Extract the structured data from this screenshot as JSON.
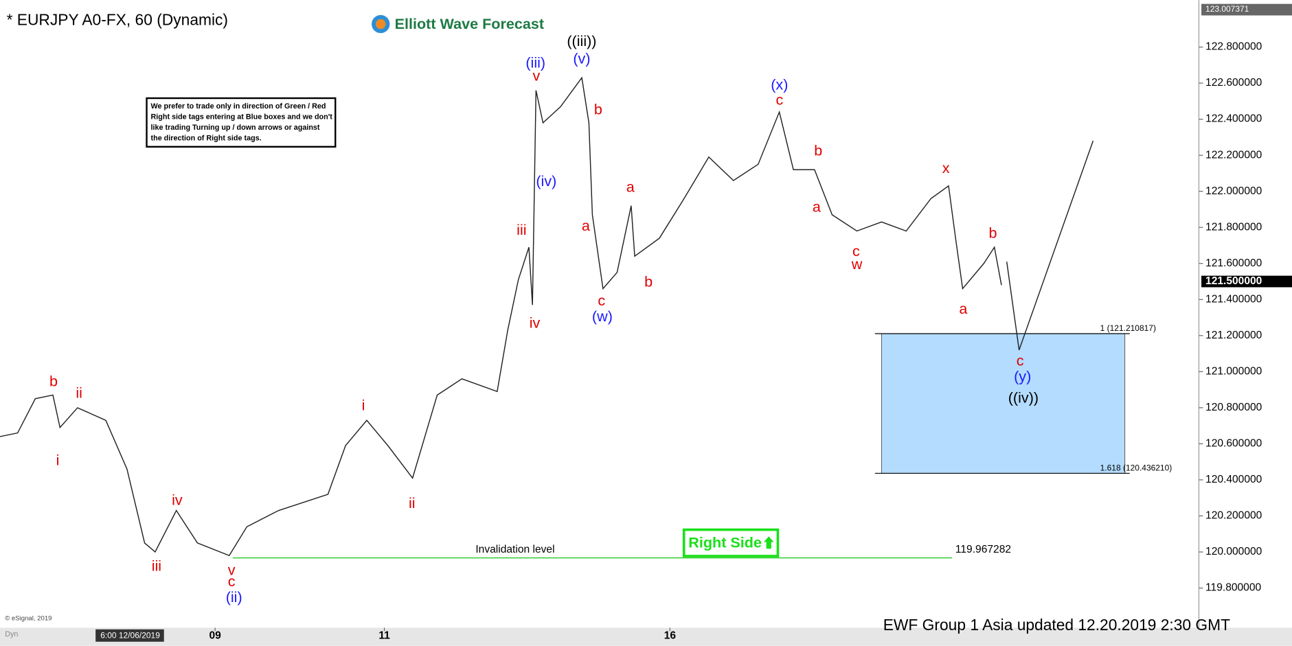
{
  "chart_data": {
    "type": "line",
    "title": "* EURJPY A0-FX, 60 (Dynamic)",
    "logo": "Elliott Wave Forecast",
    "disclaimer": [
      "We prefer to trade only in direction of Green / Red",
      "Right side tags entering at Blue boxes and we don't",
      "like trading Turning up / down arrows or against",
      "the direction of Right side tags."
    ],
    "right_side": "Right Side",
    "footer": "EWF Group  1 Asia  updated 12.20.2019 2:30 GMT",
    "copyright": "© eSignal, 2019",
    "start_date": "6:00 12/06/2019",
    "dyn": "Dyn",
    "xlim": [
      0,
      340
    ],
    "xticks": [
      {
        "value": 61,
        "label": "09"
      },
      {
        "value": 109,
        "label": "11"
      },
      {
        "value": 190,
        "label": "16"
      }
    ],
    "ylim": [
      119.58,
      123.06
    ],
    "yticks": [
      {
        "value": 119.8,
        "label": "119.800000"
      },
      {
        "value": 120.0,
        "label": "120.000000"
      },
      {
        "value": 120.2,
        "label": "120.200000"
      },
      {
        "value": 120.4,
        "label": "120.400000"
      },
      {
        "value": 120.6,
        "label": "120.600000"
      },
      {
        "value": 120.8,
        "label": "120.800000"
      },
      {
        "value": 121.0,
        "label": "121.000000"
      },
      {
        "value": 121.2,
        "label": "121.200000"
      },
      {
        "value": 121.4,
        "label": "121.400000"
      },
      {
        "value": 121.6,
        "label": "121.600000"
      },
      {
        "value": 121.8,
        "label": "121.800000"
      },
      {
        "value": 122.0,
        "label": "122.000000"
      },
      {
        "value": 122.2,
        "label": "122.200000"
      },
      {
        "value": 122.4,
        "label": "122.400000"
      },
      {
        "value": 122.6,
        "label": "122.600000"
      },
      {
        "value": 122.8,
        "label": "122.800000"
      }
    ],
    "price_labels": [
      {
        "value": 123.007371,
        "label": "123.007371"
      },
      {
        "value": 121.5,
        "label": "121.500000"
      }
    ],
    "series": [
      {
        "color": "#222222",
        "x": [
          0,
          5,
          10,
          15,
          17,
          22,
          30,
          36,
          41,
          44,
          50,
          56,
          65,
          70,
          79,
          93,
          98,
          104,
          110,
          117,
          124,
          131,
          141,
          144,
          147,
          150,
          151,
          152,
          154,
          159,
          165,
          167,
          168,
          171,
          175,
          179,
          180,
          187,
          194,
          201,
          208,
          215,
          221,
          225,
          231,
          236,
          243,
          250,
          257,
          264,
          269,
          271,
          273,
          279,
          282,
          284
        ],
        "values": [
          120.64,
          120.66,
          120.85,
          120.87,
          120.69,
          120.8,
          120.73,
          120.46,
          120.05,
          120.0,
          120.23,
          120.05,
          119.98,
          120.14,
          120.23,
          120.32,
          120.59,
          120.73,
          120.59,
          120.41,
          120.87,
          120.96,
          120.89,
          121.23,
          121.51,
          121.69,
          121.37,
          122.56,
          122.38,
          122.47,
          122.63,
          122.38,
          121.87,
          121.46,
          121.55,
          121.92,
          121.64,
          121.74,
          121.96,
          122.19,
          122.06,
          122.15,
          122.44,
          122.12,
          122.12,
          121.87,
          121.78,
          121.83,
          121.78,
          121.96,
          122.03,
          121.74,
          121.46,
          121.6,
          121.69,
          121.48
        ]
      },
      {
        "color": "#222222",
        "x": [
          285.5,
          289,
          310
        ],
        "values": [
          121.61,
          121.12,
          122.28
        ]
      }
    ],
    "target_zone": {
      "ymax": 121.210817,
      "ymin": 120.43621,
      "xlim": [
        250,
        319
      ],
      "color": "#b3dcff",
      "labels": [
        "1 (121.210817)",
        "1.618 (120.436210)"
      ]
    },
    "invalidation": {
      "value": 119.967282,
      "text": "Invalidation level",
      "xlim": [
        66,
        270
      ],
      "color": "#33cc33"
    },
    "wave_labels": [
      {
        "text": "b",
        "color": "#e00000"
      },
      {
        "text": "ii",
        "color": "#e00000"
      },
      {
        "text": "i",
        "color": "#e00000"
      },
      {
        "text": "iii",
        "color": "#e00000"
      },
      {
        "text": "iv",
        "color": "#e00000"
      },
      {
        "text": "v",
        "color": "#e00000"
      },
      {
        "text": "c",
        "color": "#e00000"
      },
      {
        "text": "(ii)",
        "color": "#1a1aff"
      },
      {
        "text": "i",
        "color": "#e00000"
      },
      {
        "text": "ii",
        "color": "#e00000"
      },
      {
        "text": "iii",
        "color": "#e00000"
      },
      {
        "text": "iv",
        "color": "#e00000"
      },
      {
        "text": "v",
        "color": "#e00000"
      },
      {
        "text": "(iii)",
        "color": "#1a1aff"
      },
      {
        "text": "(v)",
        "color": "#1a1aff"
      },
      {
        "text": "((iii))",
        "color": "#000000"
      },
      {
        "text": "(iv)",
        "color": "#1a1aff"
      },
      {
        "text": "b",
        "color": "#e00000"
      },
      {
        "text": "a",
        "color": "#e00000"
      },
      {
        "text": "c",
        "color": "#e00000"
      },
      {
        "text": "(w)",
        "color": "#1a1aff"
      },
      {
        "text": "a",
        "color": "#e00000"
      },
      {
        "text": "b",
        "color": "#e00000"
      },
      {
        "text": "(x)",
        "color": "#1a1aff"
      },
      {
        "text": "c",
        "color": "#e00000"
      },
      {
        "text": "b",
        "color": "#e00000"
      },
      {
        "text": "a",
        "color": "#e00000"
      },
      {
        "text": "c",
        "color": "#e00000"
      },
      {
        "text": "w",
        "color": "#e00000"
      },
      {
        "text": "x",
        "color": "#e00000"
      },
      {
        "text": "b",
        "color": "#e00000"
      },
      {
        "text": "a",
        "color": "#e00000"
      },
      {
        "text": "c",
        "color": "#e00000"
      },
      {
        "text": "(y)",
        "color": "#1a1aff"
      },
      {
        "text": "((iv))",
        "color": "#000000"
      }
    ]
  }
}
